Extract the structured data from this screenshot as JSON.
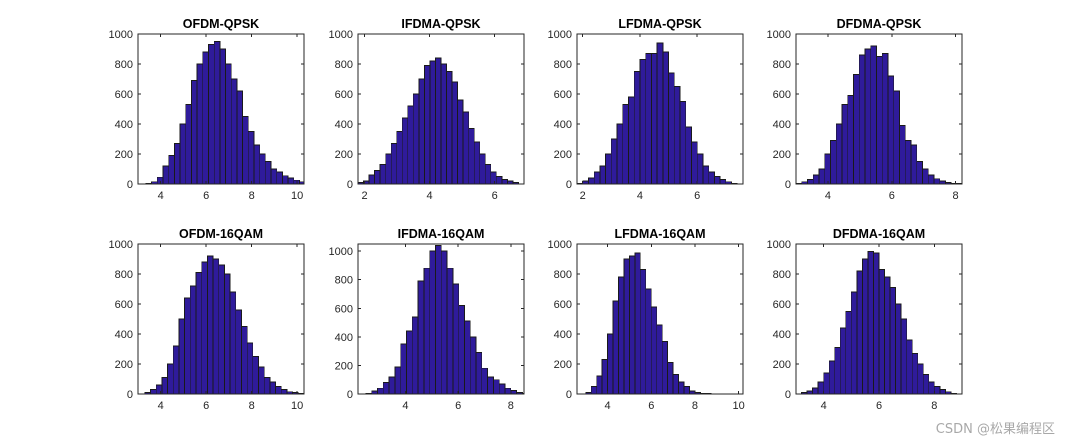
{
  "figure": {
    "background": "#ffffff",
    "bar_color": "#2f1b9b",
    "bar_edge": "#1a1a1a"
  },
  "watermark": "CSDN @松果编程区",
  "chart_data": [
    {
      "type": "bar",
      "title": "OFDM-QPSK",
      "xlim": [
        3,
        10.3
      ],
      "ylim": [
        0,
        1000
      ],
      "xticks": [
        4,
        6,
        8,
        10
      ],
      "yticks": [
        0,
        200,
        400,
        600,
        800,
        1000
      ],
      "bin_start": 3.35,
      "bin_width": 0.25,
      "values": [
        5,
        15,
        45,
        120,
        190,
        270,
        400,
        530,
        690,
        800,
        880,
        930,
        950,
        900,
        800,
        700,
        620,
        450,
        350,
        260,
        200,
        150,
        100,
        80,
        55,
        40,
        25,
        15,
        10
      ]
    },
    {
      "type": "bar",
      "title": "IFDMA-QPSK",
      "xlim": [
        1.8,
        6.9
      ],
      "ylim": [
        0,
        1000
      ],
      "xticks": [
        2,
        4,
        6
      ],
      "yticks": [
        0,
        200,
        400,
        600,
        800,
        1000
      ],
      "bin_start": 1.8,
      "bin_width": 0.17,
      "values": [
        10,
        20,
        60,
        90,
        130,
        200,
        270,
        350,
        440,
        520,
        600,
        700,
        790,
        820,
        840,
        800,
        750,
        680,
        560,
        480,
        370,
        280,
        200,
        130,
        80,
        50,
        30,
        20,
        10
      ]
    },
    {
      "type": "bar",
      "title": "LFDMA-QPSK",
      "xlim": [
        1.8,
        7.6
      ],
      "ylim": [
        0,
        1000
      ],
      "xticks": [
        2,
        4,
        6
      ],
      "yticks": [
        0,
        200,
        400,
        600,
        800,
        1000
      ],
      "bin_start": 1.8,
      "bin_width": 0.2,
      "values": [
        5,
        20,
        40,
        80,
        120,
        200,
        300,
        400,
        530,
        580,
        750,
        830,
        870,
        870,
        940,
        880,
        740,
        650,
        550,
        380,
        280,
        200,
        120,
        80,
        50,
        30,
        15,
        5
      ]
    },
    {
      "type": "bar",
      "title": "DFDMA-QPSK",
      "xlim": [
        3,
        8.2
      ],
      "ylim": [
        0,
        1000
      ],
      "xticks": [
        4,
        6,
        8
      ],
      "yticks": [
        0,
        200,
        400,
        600,
        800,
        1000
      ],
      "bin_start": 3,
      "bin_width": 0.18,
      "values": [
        5,
        15,
        30,
        60,
        100,
        200,
        290,
        400,
        530,
        590,
        730,
        860,
        900,
        920,
        850,
        870,
        720,
        620,
        390,
        290,
        260,
        150,
        100,
        60,
        35,
        20,
        10,
        5,
        5
      ]
    },
    {
      "type": "bar",
      "title": "OFDM-16QAM",
      "xlim": [
        3,
        10.3
      ],
      "ylim": [
        0,
        1000
      ],
      "xticks": [
        4,
        6,
        8,
        10
      ],
      "yticks": [
        0,
        200,
        400,
        600,
        800,
        1000
      ],
      "bin_start": 3.3,
      "bin_width": 0.25,
      "values": [
        10,
        30,
        60,
        110,
        200,
        320,
        500,
        640,
        720,
        810,
        880,
        920,
        900,
        860,
        800,
        680,
        560,
        450,
        340,
        250,
        180,
        110,
        80,
        50,
        30,
        15,
        10,
        5,
        3
      ]
    },
    {
      "type": "bar",
      "title": "IFDMA-16QAM",
      "xlim": [
        2.2,
        8.5
      ],
      "ylim": [
        0,
        1050
      ],
      "xticks": [
        4,
        6,
        8
      ],
      "yticks": [
        0,
        200,
        400,
        600,
        800,
        1000
      ],
      "bin_start": 2.5,
      "bin_width": 0.22,
      "values": [
        5,
        20,
        40,
        80,
        120,
        190,
        350,
        440,
        540,
        790,
        880,
        1000,
        1040,
        1000,
        880,
        770,
        620,
        510,
        400,
        290,
        180,
        120,
        100,
        70,
        40,
        25,
        10,
        5
      ]
    },
    {
      "type": "bar",
      "title": "LFDMA-16QAM",
      "xlim": [
        2.6,
        10.2
      ],
      "ylim": [
        0,
        1000
      ],
      "xticks": [
        4,
        6,
        8,
        10
      ],
      "yticks": [
        0,
        200,
        400,
        600,
        800,
        1000
      ],
      "bin_start": 3,
      "bin_width": 0.25,
      "values": [
        10,
        50,
        120,
        230,
        400,
        620,
        780,
        900,
        920,
        940,
        830,
        700,
        580,
        460,
        350,
        210,
        130,
        80,
        50,
        20,
        10,
        5,
        3,
        2,
        1
      ]
    },
    {
      "type": "bar",
      "title": "DFDMA-16QAM",
      "xlim": [
        3,
        9
      ],
      "ylim": [
        0,
        1000
      ],
      "xticks": [
        4,
        6,
        8
      ],
      "yticks": [
        0,
        200,
        400,
        600,
        800,
        1000
      ],
      "bin_start": 3.2,
      "bin_width": 0.2,
      "values": [
        10,
        20,
        40,
        80,
        140,
        220,
        310,
        440,
        550,
        680,
        820,
        900,
        950,
        940,
        830,
        780,
        710,
        600,
        500,
        360,
        270,
        200,
        130,
        80,
        50,
        30,
        15,
        5
      ]
    }
  ]
}
